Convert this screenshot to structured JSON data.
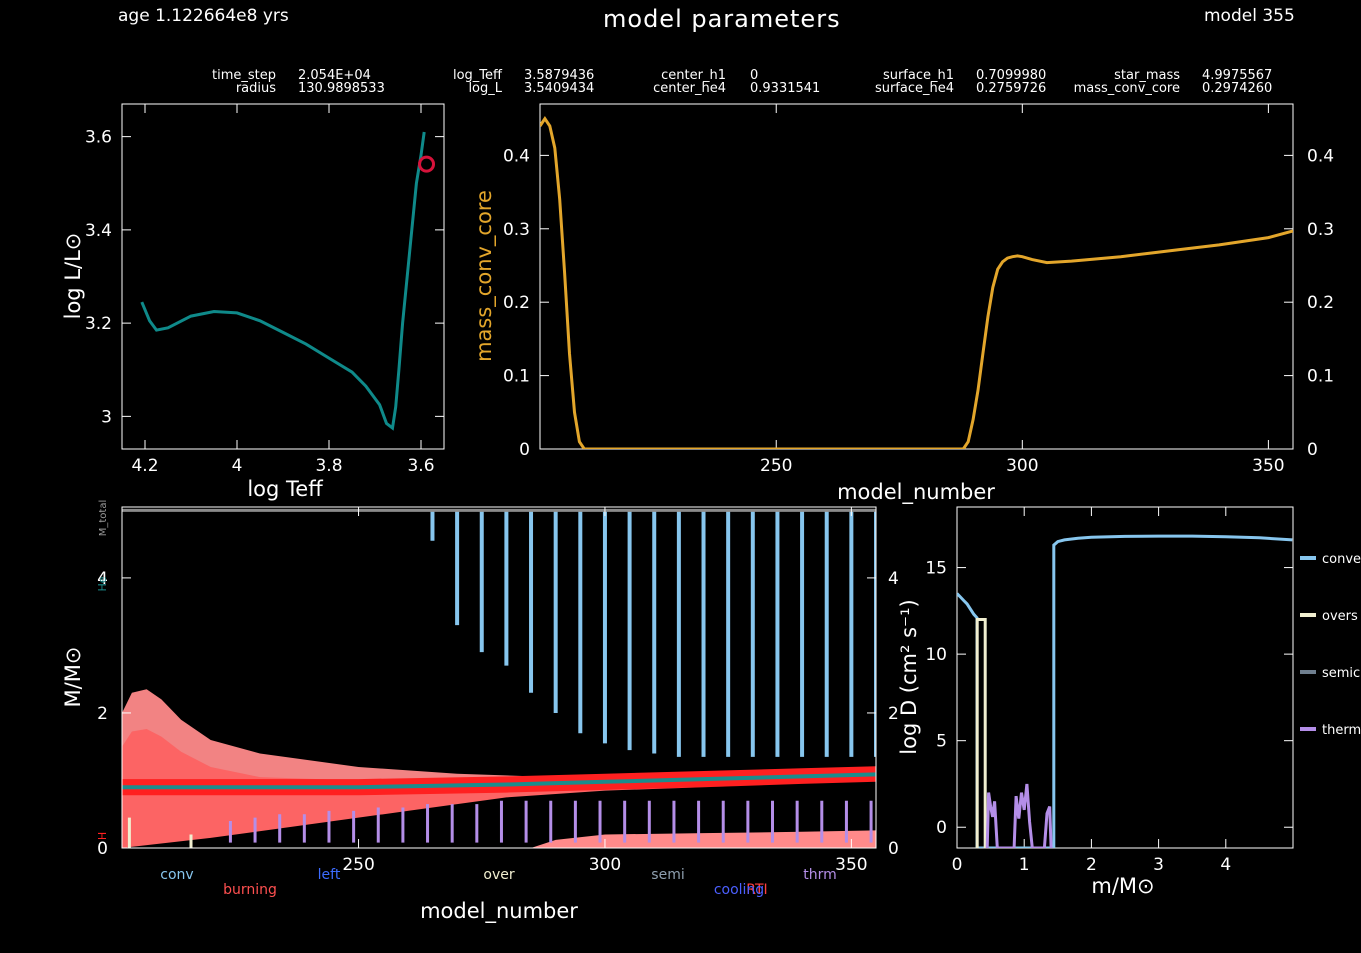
{
  "header": {
    "age": "age 1.122664e8 yrs",
    "title": "model parameters",
    "model": "model 355"
  },
  "params": [
    {
      "name": "time_step",
      "value": "2.054E+04"
    },
    {
      "name": "radius",
      "value": "130.9898533"
    },
    {
      "name": "log_Teff",
      "value": "3.5879436"
    },
    {
      "name": "log_L",
      "value": "3.5409434"
    },
    {
      "name": "center_h1",
      "value": "0"
    },
    {
      "name": "center_he4",
      "value": "0.9331541"
    },
    {
      "name": "surface_h1",
      "value": "0.7099980"
    },
    {
      "name": "surface_he4",
      "value": "0.2759726"
    },
    {
      "name": "star_mass",
      "value": "4.9975567"
    },
    {
      "name": "mass_conv_core",
      "value": "0.2974260"
    }
  ],
  "colors": {
    "hr_track": "#0f8a8a",
    "current_marker": "#d6123a",
    "mass_conv_core": "#e3a62b",
    "conv": "#87c6ee",
    "overshoot": "#f1efd0",
    "semiconv": "#6f7f8f",
    "thermohaline": "#b48ee8",
    "burning_light": "#ff8a8a",
    "burning_mid": "#ff5a5a",
    "burning_dark": "#ff2020",
    "he_core": "#1a8c8c"
  },
  "chart_data": [
    {
      "type": "line",
      "xlabel": "log Teff",
      "ylabel": "log L/L⊙",
      "xlim": [
        4.25,
        3.55
      ],
      "ylim": [
        2.93,
        3.67
      ],
      "xticks": [
        4.2,
        4,
        3.8,
        3.6
      ],
      "xtick_labels": [
        "4.2",
        "4",
        "3.8",
        "3.6"
      ],
      "yticks": [
        3,
        3.2,
        3.4,
        3.6
      ],
      "ytick_labels": [
        "3",
        "3.2",
        "3.4",
        "3.6"
      ],
      "x": [
        4.207,
        4.19,
        4.175,
        4.15,
        4.1,
        4.05,
        4.0,
        3.95,
        3.9,
        3.85,
        3.8,
        3.75,
        3.72,
        3.69,
        3.675,
        3.662,
        3.655,
        3.648,
        3.64,
        3.63,
        3.62,
        3.61,
        3.6,
        3.593
      ],
      "y": [
        3.245,
        3.205,
        3.185,
        3.19,
        3.215,
        3.225,
        3.222,
        3.205,
        3.18,
        3.155,
        3.125,
        3.095,
        3.065,
        3.025,
        2.985,
        2.975,
        3.02,
        3.1,
        3.2,
        3.3,
        3.4,
        3.5,
        3.56,
        3.61
      ],
      "marker": {
        "x": 3.588,
        "y": 3.541
      }
    },
    {
      "type": "line",
      "xlabel": "model_number",
      "ylabel": "mass_conv_core",
      "xlim": [
        202,
        355
      ],
      "ylim": [
        0,
        0.47
      ],
      "xticks": [
        250,
        300,
        350
      ],
      "xtick_labels": [
        "250",
        "300",
        "350"
      ],
      "yticks": [
        0,
        0.1,
        0.2,
        0.3,
        0.4
      ],
      "ytick_labels": [
        "0",
        "0.1",
        "0.2",
        "0.3",
        "0.4"
      ],
      "x": [
        202,
        203,
        204,
        205,
        206,
        207,
        208,
        209,
        210,
        211,
        212,
        288,
        289,
        290,
        291,
        292,
        293,
        294,
        295,
        296,
        297,
        298,
        299,
        300,
        302,
        305,
        310,
        320,
        330,
        340,
        350,
        355
      ],
      "y": [
        0.44,
        0.45,
        0.44,
        0.41,
        0.34,
        0.24,
        0.13,
        0.05,
        0.01,
        0.0,
        0.0,
        0.0,
        0.01,
        0.04,
        0.08,
        0.13,
        0.18,
        0.22,
        0.245,
        0.255,
        0.26,
        0.262,
        0.263,
        0.262,
        0.258,
        0.254,
        0.256,
        0.262,
        0.27,
        0.278,
        0.288,
        0.297
      ]
    },
    {
      "type": "area",
      "xlabel": "model_number",
      "ylabel": "M/M⊙",
      "xlim": [
        202,
        355
      ],
      "ylim": [
        0,
        5.05
      ],
      "xticks": [
        250,
        300,
        350
      ],
      "xtick_labels": [
        "250",
        "300",
        "350"
      ],
      "yticks": [
        0,
        2,
        4
      ],
      "ytick_labels": [
        "0",
        "2",
        "4"
      ],
      "right_ytick_labels": [
        "0",
        "2",
        "4"
      ],
      "star_mass": 5.0,
      "he_core": {
        "x": [
          202,
          250,
          280,
          300,
          320,
          340,
          355
        ],
        "y": [
          0.9,
          0.9,
          0.94,
          0.98,
          1.02,
          1.06,
          1.09
        ]
      },
      "burning_outer": {
        "x": [
          202,
          204,
          207,
          210,
          214,
          220,
          230,
          250,
          270,
          290,
          310,
          330,
          355
        ],
        "y": [
          2.0,
          2.3,
          2.35,
          2.2,
          1.9,
          1.6,
          1.4,
          1.2,
          1.1,
          1.05,
          1.1,
          1.15,
          1.18
        ]
      },
      "burning_inner_low": {
        "x": [
          202,
          220,
          240,
          260,
          280,
          300,
          320,
          340,
          355
        ],
        "y": [
          0.0,
          0.15,
          0.35,
          0.55,
          0.75,
          0.85,
          0.9,
          0.95,
          0.98
        ]
      },
      "shell_burning": {
        "x": [
          285,
          290,
          300,
          320,
          340,
          355
        ],
        "top": [
          0.0,
          0.12,
          0.2,
          0.22,
          0.24,
          0.26
        ],
        "bottom": [
          0.0,
          0.0,
          0.0,
          0.0,
          0.0,
          0.0
        ]
      },
      "conv_envelope_spikes": {
        "x": [
          265,
          270,
          275,
          280,
          285,
          290,
          295,
          300,
          305,
          310,
          315,
          320,
          325,
          330,
          335,
          340,
          345,
          350,
          355
        ],
        "bottom": [
          4.55,
          3.3,
          2.9,
          2.7,
          2.3,
          2.0,
          1.7,
          1.55,
          1.45,
          1.4,
          1.35,
          1.35,
          1.35,
          1.35,
          1.35,
          1.35,
          1.35,
          1.35,
          1.35
        ]
      },
      "thermohaline_spikes": {
        "x": [
          224,
          229,
          234,
          239,
          244,
          249,
          254,
          259,
          264,
          269,
          274,
          279,
          284,
          289,
          294,
          299,
          304,
          309,
          314,
          319,
          324,
          329,
          334,
          339,
          344,
          349,
          354
        ],
        "top": [
          0.4,
          0.45,
          0.5,
          0.5,
          0.55,
          0.55,
          0.6,
          0.6,
          0.65,
          0.65,
          0.65,
          0.7,
          0.7,
          0.7,
          0.7,
          0.7,
          0.7,
          0.7,
          0.7,
          0.7,
          0.7,
          0.7,
          0.7,
          0.7,
          0.7,
          0.7,
          0.7
        ]
      },
      "side_labels": {
        "total": "M_total",
        "he": "He",
        "h": "H"
      },
      "legend": [
        {
          "label": "conv",
          "color": "#87c6ee"
        },
        {
          "label": "burning",
          "color": "#ff5050"
        },
        {
          "label": "left",
          "color": "#3c6cff"
        },
        {
          "label": "over",
          "color": "#f1efd0"
        },
        {
          "label": "semi",
          "color": "#8fa0b0"
        },
        {
          "label": "RTI",
          "color": "#ff4040"
        },
        {
          "label": "cooling",
          "color": "#4b5fff"
        },
        {
          "label": "thrm",
          "color": "#b48ee8"
        }
      ]
    },
    {
      "type": "line",
      "xlabel": "m/M⊙",
      "ylabel": "log D (cm² s⁻¹)",
      "xlim": [
        0,
        5.0
      ],
      "ylim": [
        -1.2,
        18.5
      ],
      "xticks": [
        0,
        1,
        2,
        3,
        4
      ],
      "xtick_labels": [
        "0",
        "1",
        "2",
        "3",
        "4"
      ],
      "yticks": [
        0,
        5,
        10,
        15
      ],
      "ytick_labels": [
        "0",
        "5",
        "10",
        "15"
      ],
      "series": [
        {
          "name": "conve",
          "color": "#87c6ee",
          "x": [
            0,
            0.05,
            0.1,
            0.15,
            0.2,
            0.25,
            0.297,
            0.297,
            1.44,
            1.44,
            1.5,
            1.6,
            1.8,
            2.0,
            2.5,
            3.0,
            3.5,
            4.0,
            4.5,
            4.99
          ],
          "y": [
            13.5,
            13.3,
            13.1,
            12.9,
            12.6,
            12.3,
            12.1,
            -1.2,
            -1.2,
            16.3,
            16.5,
            16.6,
            16.7,
            16.75,
            16.8,
            16.82,
            16.82,
            16.78,
            16.72,
            16.6
          ]
        },
        {
          "name": "overs",
          "color": "#f1efd0",
          "x": [
            0.3,
            0.3,
            0.42,
            0.42
          ],
          "y": [
            -1.2,
            12.0,
            12.0,
            -1.2
          ]
        },
        {
          "name": "semic",
          "color": "#6f7f8f",
          "x": [],
          "y": []
        },
        {
          "name": "therm",
          "color": "#b48ee8",
          "x": [
            0.45,
            0.47,
            0.5,
            0.53,
            0.56,
            0.6,
            0.85,
            0.88,
            0.92,
            0.96,
            1.0,
            1.04,
            1.08,
            1.12,
            1.3,
            1.34,
            1.38,
            1.4
          ],
          "y": [
            -1.2,
            2.0,
            1.2,
            0.6,
            1.5,
            -1.2,
            -1.2,
            1.8,
            0.5,
            2.0,
            1.0,
            2.5,
            0.3,
            -1.2,
            -1.2,
            0.8,
            1.2,
            -1.2
          ]
        }
      ]
    }
  ]
}
